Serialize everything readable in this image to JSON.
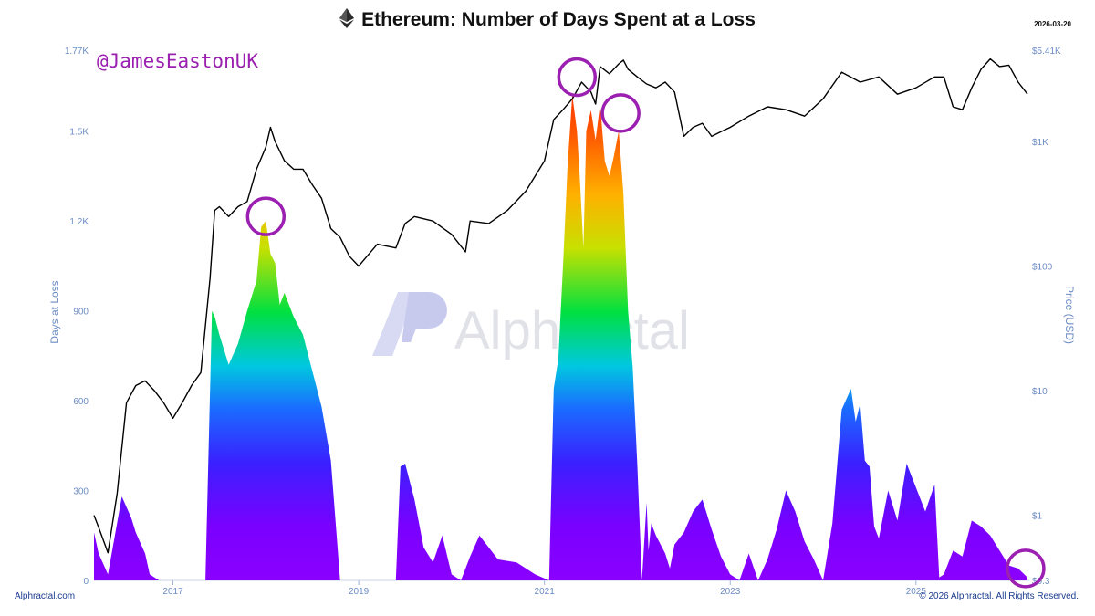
{
  "header": {
    "title": "Ethereum: Number of Days Spent at a Loss",
    "date": "2026-03-20",
    "handle": "@JamesEastonUK"
  },
  "footer": {
    "left": "Alphractal.com",
    "right": "© 2026 Alphractal. All Rights Reserved."
  },
  "watermark": "Alphractal",
  "colors": {
    "price_line": "#000000",
    "axis_text": "#6c8cc4",
    "highlight_circle": "#9b1fb0",
    "gradient": [
      "#8a00ff",
      "#6a00ff",
      "#1a3cff",
      "#00c8e0",
      "#00e040",
      "#e8e000",
      "#ff9000",
      "#ff0000"
    ]
  },
  "chart_data": {
    "type": "area",
    "x_axis": {
      "ticks": [
        "2017",
        "2019",
        "2021",
        "2023",
        "2025"
      ],
      "tick_years": [
        2017,
        2019,
        2021,
        2023,
        2025
      ],
      "range": [
        2016.15,
        2026.22
      ]
    },
    "y_left": {
      "label": "Days at Loss",
      "ticks": [
        "0",
        "300",
        "600",
        "900",
        "1.2K",
        "1.5K",
        "1.77K"
      ],
      "tick_values": [
        0,
        300,
        600,
        900,
        1200,
        1500,
        1770
      ],
      "range": [
        0,
        1770
      ]
    },
    "y_right": {
      "label": "Price (USD)",
      "scale": "log",
      "ticks": [
        "$0.3",
        "$1",
        "$10",
        "$100",
        "$1K",
        "$5.41K"
      ],
      "tick_values": [
        0.3,
        1,
        10,
        100,
        1000,
        5410
      ],
      "range": [
        0.3,
        5410
      ]
    },
    "series": [
      {
        "name": "Days at Loss",
        "kind": "area",
        "x": [
          2016.15,
          2016.2,
          2016.3,
          2016.45,
          2016.55,
          2016.6,
          2016.7,
          2016.75,
          2016.85,
          2016.95,
          2017.05,
          2017.2,
          2017.35,
          2017.42,
          2017.45,
          2017.5,
          2017.6,
          2017.7,
          2017.8,
          2017.9,
          2017.95,
          2018.0,
          2018.05,
          2018.1,
          2018.15,
          2018.2,
          2018.3,
          2018.4,
          2018.5,
          2018.6,
          2018.7,
          2018.8,
          2018.9,
          2018.95,
          2019.0,
          2019.1,
          2019.2,
          2019.35,
          2019.4,
          2019.45,
          2019.5,
          2019.6,
          2019.7,
          2019.8,
          2019.9,
          2020.0,
          2020.1,
          2020.2,
          2020.3,
          2020.5,
          2020.7,
          2020.9,
          2021.05,
          2021.1,
          2021.15,
          2021.2,
          2021.25,
          2021.3,
          2021.35,
          2021.38,
          2021.42,
          2021.45,
          2021.5,
          2021.55,
          2021.6,
          2021.62,
          2021.65,
          2021.7,
          2021.75,
          2021.8,
          2021.85,
          2021.9,
          2021.95,
          2022.0,
          2022.05,
          2022.1,
          2022.12,
          2022.15,
          2022.2,
          2022.3,
          2022.35,
          2022.4,
          2022.5,
          2022.6,
          2022.7,
          2022.8,
          2022.9,
          2023.0,
          2023.1,
          2023.2,
          2023.3,
          2023.4,
          2023.5,
          2023.6,
          2023.7,
          2023.8,
          2023.9,
          2024.0,
          2024.1,
          2024.2,
          2024.3,
          2024.35,
          2024.4,
          2024.45,
          2024.5,
          2024.55,
          2024.6,
          2024.7,
          2024.8,
          2024.9,
          2025.0,
          2025.1,
          2025.2,
          2025.25,
          2025.3,
          2025.4,
          2025.5,
          2025.6,
          2025.65,
          2025.7,
          2025.8,
          2025.9,
          2026.0,
          2026.1,
          2026.2
        ],
        "y": [
          160,
          90,
          20,
          280,
          210,
          160,
          90,
          20,
          0,
          0,
          0,
          0,
          0,
          900,
          880,
          820,
          720,
          790,
          900,
          1000,
          1180,
          1200,
          1090,
          1060,
          920,
          960,
          880,
          820,
          700,
          580,
          400,
          0,
          0,
          0,
          0,
          0,
          0,
          0,
          0,
          380,
          390,
          270,
          110,
          60,
          150,
          20,
          0,
          80,
          150,
          70,
          60,
          20,
          0,
          640,
          740,
          1050,
          1390,
          1620,
          1500,
          1350,
          1110,
          1500,
          1570,
          1470,
          1590,
          1510,
          1400,
          1350,
          1420,
          1500,
          1290,
          900,
          710,
          380,
          0,
          260,
          100,
          190,
          150,
          90,
          40,
          120,
          160,
          230,
          270,
          170,
          80,
          20,
          0,
          90,
          0,
          70,
          170,
          300,
          230,
          130,
          70,
          0,
          190,
          570,
          640,
          530,
          590,
          400,
          380,
          180,
          140,
          300,
          200,
          390,
          310,
          230,
          320,
          10,
          20,
          100,
          80,
          200,
          190,
          180,
          150,
          100,
          50,
          40,
          10
        ]
      },
      {
        "name": "Price (USD)",
        "kind": "line",
        "x": [
          2016.15,
          2016.2,
          2016.3,
          2016.4,
          2016.5,
          2016.6,
          2016.7,
          2016.8,
          2016.9,
          2017.0,
          2017.1,
          2017.2,
          2017.3,
          2017.4,
          2017.45,
          2017.5,
          2017.6,
          2017.7,
          2017.8,
          2017.9,
          2018.0,
          2018.05,
          2018.1,
          2018.2,
          2018.3,
          2018.4,
          2018.5,
          2018.6,
          2018.7,
          2018.8,
          2018.9,
          2019.0,
          2019.2,
          2019.4,
          2019.5,
          2019.6,
          2019.8,
          2020.0,
          2020.15,
          2020.2,
          2020.4,
          2020.6,
          2020.8,
          2021.0,
          2021.1,
          2021.2,
          2021.3,
          2021.4,
          2021.5,
          2021.55,
          2021.6,
          2021.7,
          2021.8,
          2021.85,
          2021.9,
          2022.0,
          2022.1,
          2022.2,
          2022.3,
          2022.4,
          2022.5,
          2022.6,
          2022.7,
          2022.8,
          2022.9,
          2023.0,
          2023.2,
          2023.4,
          2023.6,
          2023.8,
          2024.0,
          2024.2,
          2024.4,
          2024.6,
          2024.8,
          2025.0,
          2025.2,
          2025.3,
          2025.4,
          2025.5,
          2025.6,
          2025.7,
          2025.8,
          2025.9,
          2026.0,
          2026.1,
          2026.2
        ],
        "y": [
          1.0,
          0.8,
          0.5,
          1.5,
          8,
          11,
          12,
          10,
          8,
          6,
          8,
          11,
          14,
          80,
          280,
          300,
          250,
          300,
          330,
          600,
          900,
          1300,
          1000,
          700,
          600,
          600,
          450,
          350,
          200,
          170,
          120,
          100,
          150,
          140,
          220,
          250,
          230,
          180,
          130,
          230,
          220,
          280,
          400,
          700,
          1500,
          1800,
          2200,
          3000,
          2500,
          2000,
          4000,
          3500,
          4200,
          4500,
          3800,
          3300,
          2900,
          2700,
          3000,
          2500,
          1100,
          1300,
          1400,
          1100,
          1200,
          1300,
          1600,
          1900,
          1800,
          1600,
          2200,
          3600,
          3000,
          3300,
          2400,
          2700,
          3300,
          3300,
          1900,
          1800,
          2700,
          3800,
          4600,
          4000,
          4100,
          3000,
          2400
        ]
      }
    ],
    "highlight_circles": [
      {
        "x": 2018.0,
        "y_days": 1215
      },
      {
        "x": 2021.35,
        "y_days": 1680
      },
      {
        "x": 2021.82,
        "y_days": 1560
      },
      {
        "x": 2026.18,
        "y_days": 40
      }
    ]
  }
}
